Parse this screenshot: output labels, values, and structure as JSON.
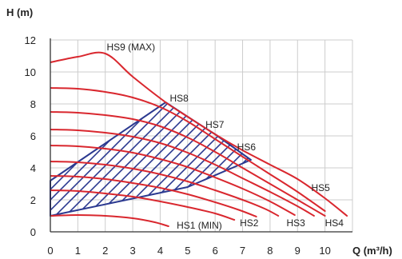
{
  "chart_data": {
    "type": "line",
    "title": "",
    "xlabel": "Q (m³/h)",
    "ylabel": "H (m)",
    "xlim": [
      0,
      11
    ],
    "ylim": [
      0,
      12
    ],
    "x_ticks": [
      0,
      1,
      2,
      3,
      4,
      5,
      6,
      7,
      8,
      9,
      10
    ],
    "y_ticks": [
      0,
      2,
      4,
      6,
      8,
      10,
      12
    ],
    "grid": true,
    "colors": {
      "curve": "#d9272e",
      "hatch": "#2b3990",
      "grid": "#cccccc",
      "axis": "#333333"
    },
    "series": [
      {
        "name": "HS9 (MAX)",
        "points": [
          [
            0,
            10.6
          ],
          [
            1,
            10.95
          ],
          [
            2,
            11.15
          ],
          [
            3,
            9.7
          ],
          [
            4.2,
            8.1
          ],
          [
            5,
            7.2
          ],
          [
            6,
            6.1
          ],
          [
            7,
            5.1
          ],
          [
            8,
            4.2
          ],
          [
            9,
            3.3
          ],
          [
            10,
            2.1
          ],
          [
            10.8,
            1.0
          ]
        ]
      },
      {
        "name": "HS8",
        "points": [
          [
            0,
            9.0
          ],
          [
            1,
            8.95
          ],
          [
            2,
            8.75
          ],
          [
            3,
            8.4
          ],
          [
            4,
            7.8
          ],
          [
            5,
            6.9
          ],
          [
            6,
            5.8
          ],
          [
            7,
            4.7
          ],
          [
            8,
            3.6
          ],
          [
            9,
            2.5
          ],
          [
            10,
            1.3
          ]
        ]
      },
      {
        "name": "HS7",
        "points": [
          [
            0,
            7.5
          ],
          [
            1,
            7.45
          ],
          [
            2,
            7.3
          ],
          [
            3,
            7.05
          ],
          [
            4,
            6.6
          ],
          [
            5,
            5.9
          ],
          [
            6,
            5.0
          ],
          [
            7,
            4.0
          ],
          [
            8,
            3.0
          ],
          [
            9,
            2.0
          ],
          [
            10,
            1.0
          ]
        ]
      },
      {
        "name": "HS6",
        "points": [
          [
            0,
            6.4
          ],
          [
            1,
            6.35
          ],
          [
            2,
            6.2
          ],
          [
            3,
            5.95
          ],
          [
            4,
            5.55
          ],
          [
            5,
            4.95
          ],
          [
            6,
            4.2
          ],
          [
            7,
            3.35
          ],
          [
            8,
            2.5
          ],
          [
            9,
            1.6
          ],
          [
            9.6,
            1.0
          ]
        ]
      },
      {
        "name": "HS5",
        "points": [
          [
            0,
            5.4
          ],
          [
            1,
            5.35
          ],
          [
            2,
            5.2
          ],
          [
            3,
            4.95
          ],
          [
            4,
            4.55
          ],
          [
            5,
            4.05
          ],
          [
            6,
            3.4
          ],
          [
            7,
            2.7
          ],
          [
            8,
            1.9
          ],
          [
            8.9,
            1.05
          ]
        ]
      },
      {
        "name": "HS4",
        "points": [
          [
            0,
            4.4
          ],
          [
            1,
            4.35
          ],
          [
            2,
            4.2
          ],
          [
            3,
            3.95
          ],
          [
            4,
            3.6
          ],
          [
            5,
            3.15
          ],
          [
            6,
            2.6
          ],
          [
            7,
            2.0
          ],
          [
            7.8,
            1.45
          ],
          [
            8.3,
            1.0
          ]
        ]
      },
      {
        "name": "HS3",
        "points": [
          [
            0,
            3.5
          ],
          [
            1,
            3.45
          ],
          [
            2,
            3.3
          ],
          [
            3,
            3.05
          ],
          [
            4,
            2.75
          ],
          [
            5,
            2.35
          ],
          [
            6,
            1.85
          ],
          [
            6.9,
            1.35
          ],
          [
            7.5,
            0.95
          ]
        ]
      },
      {
        "name": "HS2",
        "points": [
          [
            0,
            2.6
          ],
          [
            1,
            2.55
          ],
          [
            2,
            2.4
          ],
          [
            3,
            2.2
          ],
          [
            4,
            1.9
          ],
          [
            5,
            1.55
          ],
          [
            6,
            1.15
          ],
          [
            6.7,
            0.75
          ]
        ]
      },
      {
        "name": "HS1 (MIN)",
        "points": [
          [
            0,
            1.0
          ],
          [
            1,
            1.05
          ],
          [
            2,
            1.0
          ],
          [
            3,
            0.85
          ],
          [
            3.8,
            0.6
          ],
          [
            4.3,
            0.35
          ]
        ]
      }
    ],
    "hatched_region": [
      [
        0,
        3.2
      ],
      [
        4.2,
        8.1
      ],
      [
        5,
        7.2
      ],
      [
        6,
        6.1
      ],
      [
        7.3,
        4.5
      ],
      [
        5,
        2.8
      ],
      [
        0,
        1.0
      ]
    ],
    "labels": [
      {
        "text": "HS9 (MAX)",
        "x": 2.05,
        "y": 11.35
      },
      {
        "text": "HS8",
        "x": 4.35,
        "y": 8.15
      },
      {
        "text": "HS7",
        "x": 5.65,
        "y": 6.5
      },
      {
        "text": "HS6",
        "x": 6.8,
        "y": 5.1
      },
      {
        "text": "HS5",
        "x": 9.5,
        "y": 2.55
      },
      {
        "text": "HS4",
        "x": 10.0,
        "y": 0.35
      },
      {
        "text": "HS3",
        "x": 8.6,
        "y": 0.35
      },
      {
        "text": "HS2",
        "x": 6.9,
        "y": 0.35
      },
      {
        "text": "HS1 (MIN)",
        "x": 4.6,
        "y": 0.2
      }
    ]
  }
}
